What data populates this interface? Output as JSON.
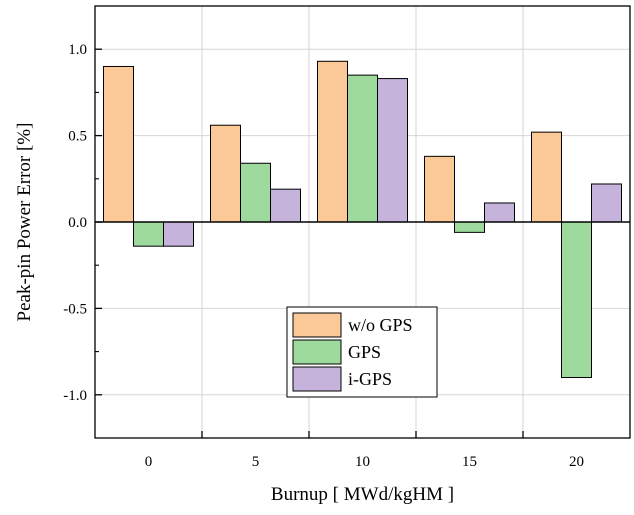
{
  "chart_data": {
    "type": "bar",
    "title": "",
    "xlabel": "Burnup [ MWd/kgHM ]",
    "ylabel": "Peak-pin Power Error [%]",
    "categories": [
      "0",
      "5",
      "10",
      "15",
      "20"
    ],
    "series": [
      {
        "name": "w/o GPS",
        "color": "#fbc898",
        "values": [
          0.9,
          0.56,
          0.93,
          0.38,
          0.52
        ]
      },
      {
        "name": "GPS",
        "color": "#9ed99e",
        "values": [
          -0.14,
          0.34,
          0.85,
          -0.06,
          -0.9
        ]
      },
      {
        "name": "i-GPS",
        "color": "#c6b3dc",
        "values": [
          -0.14,
          0.19,
          0.83,
          0.11,
          0.22
        ]
      }
    ],
    "ylim": [
      -1.25,
      1.25
    ],
    "yticks": [
      "-1.0",
      "-0.5",
      "0.0",
      "0.5",
      "1.0"
    ],
    "grid": true,
    "legend_position": "bottom-center"
  }
}
